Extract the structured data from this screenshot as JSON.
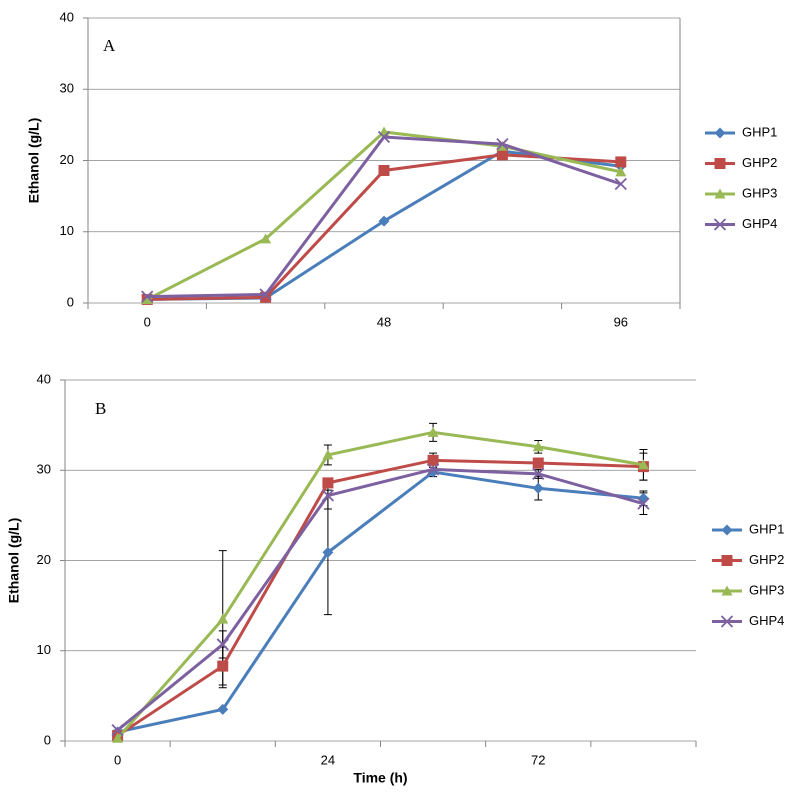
{
  "chart_data": [
    {
      "type": "line",
      "annotation": "A",
      "ylabel": "Ethanol (g/L)",
      "categories": [
        "0",
        null,
        "48",
        null,
        "96"
      ],
      "ylim": [
        0,
        40
      ],
      "yticks": [
        0,
        10,
        20,
        30,
        40
      ],
      "grid": true,
      "series": [
        {
          "name": "GHP1",
          "color": "#4a7ebb",
          "marker": "diamond",
          "values": [
            0.5,
            0.7,
            11.5,
            21.3,
            19.2
          ]
        },
        {
          "name": "GHP2",
          "color": "#be4b48",
          "marker": "square",
          "values": [
            0.5,
            0.8,
            18.6,
            20.8,
            19.8
          ]
        },
        {
          "name": "GHP3",
          "color": "#98b954",
          "marker": "triangle",
          "values": [
            0.5,
            9.0,
            24.0,
            22.0,
            18.4
          ]
        },
        {
          "name": "GHP4",
          "color": "#7d60a0",
          "marker": "x",
          "values": [
            0.9,
            1.2,
            23.3,
            22.3,
            16.7
          ]
        }
      ]
    },
    {
      "type": "line",
      "annotation": "B",
      "ylabel": "Ethanol (g/L)",
      "xlabel": "Time (h)",
      "categories": [
        "0",
        null,
        "24",
        null,
        "72",
        null
      ],
      "ylim": [
        0,
        40
      ],
      "yticks": [
        0,
        10,
        20,
        30,
        40
      ],
      "grid": true,
      "series": [
        {
          "name": "GHP1",
          "color": "#4a7ebb",
          "marker": "diamond",
          "values": [
            1.0,
            3.5,
            20.9,
            29.8,
            28.0,
            26.9
          ],
          "errors": [
            0,
            0,
            6.9,
            0.5,
            1.3,
            0.8
          ]
        },
        {
          "name": "GHP2",
          "color": "#be4b48",
          "marker": "square",
          "values": [
            0.6,
            8.3,
            28.6,
            31.1,
            30.8,
            30.4
          ],
          "errors": [
            0,
            2.1,
            0,
            0.8,
            0.5,
            1.5
          ]
        },
        {
          "name": "GHP3",
          "color": "#98b954",
          "marker": "triangle",
          "values": [
            0.3,
            13.5,
            31.7,
            34.2,
            32.6,
            30.6
          ],
          "errors": [
            0,
            7.6,
            1.1,
            1.0,
            0.7,
            1.7
          ]
        },
        {
          "name": "GHP4",
          "color": "#7d60a0",
          "marker": "x",
          "values": [
            1.2,
            10.7,
            27.2,
            30.1,
            29.6,
            26.3
          ],
          "errors": [
            0,
            1.5,
            1.5,
            0.5,
            0.5,
            1.2
          ]
        }
      ]
    }
  ]
}
